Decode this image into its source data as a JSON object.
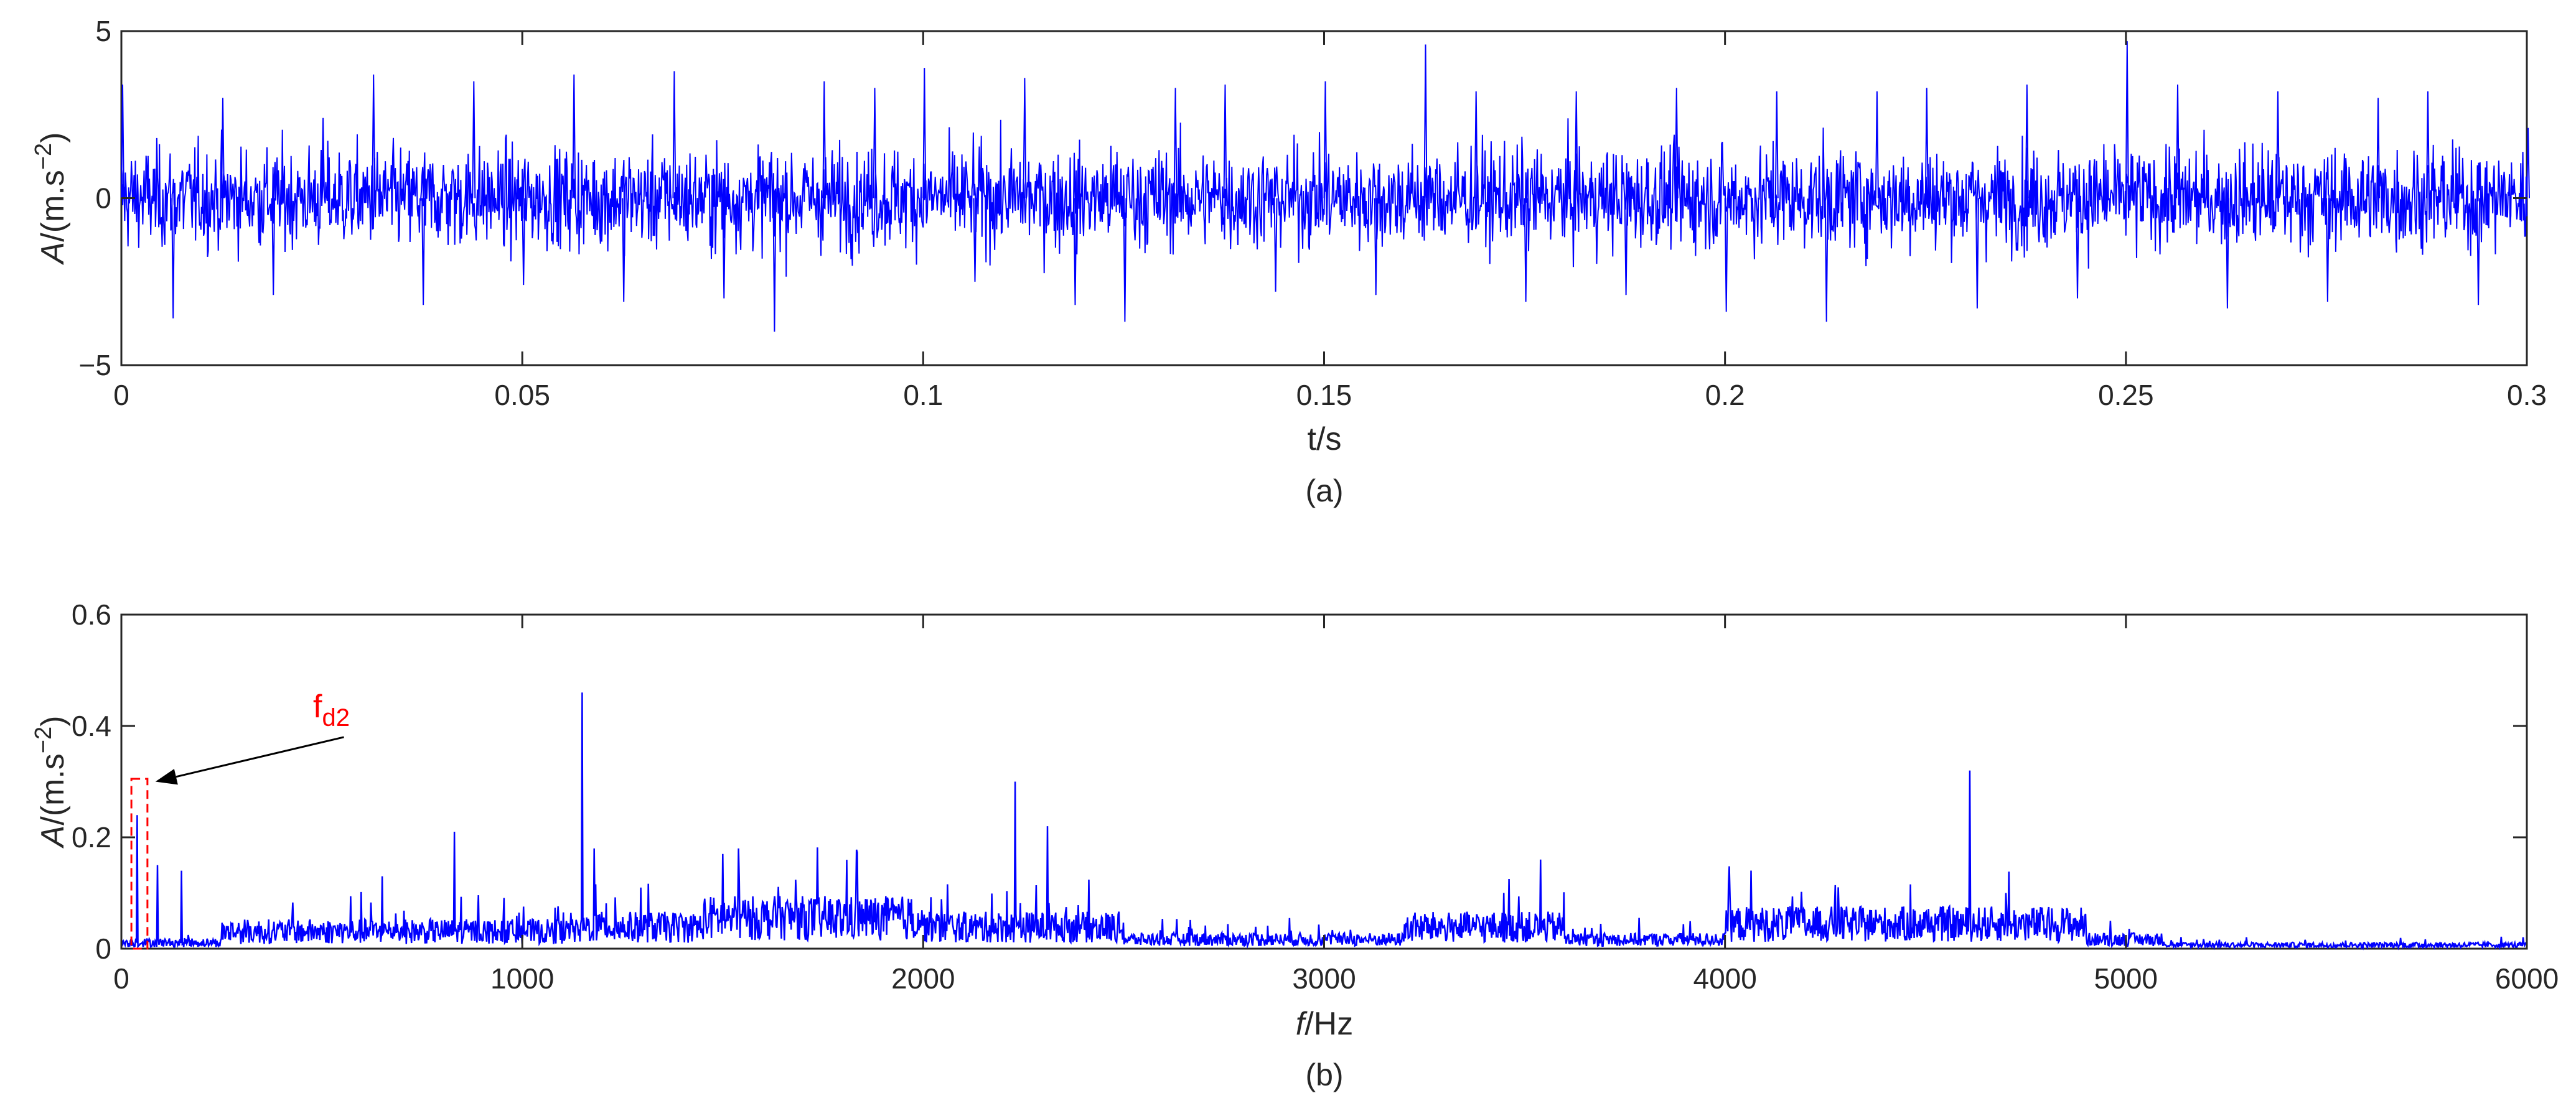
{
  "chart_data": [
    {
      "type": "line",
      "panel": "(a)",
      "caption": "(a)",
      "xlabel": "t/s",
      "ylabel": "A/(m.s",
      "ylabel_exp": "−2",
      "ylabel_close": ")",
      "xlim": [
        0,
        0.3
      ],
      "ylim": [
        -5,
        5
      ],
      "xticks": [
        0,
        0.05,
        0.1,
        0.15,
        0.2,
        0.25,
        0.3
      ],
      "xtick_labels": [
        "0",
        "0.05",
        "0.1",
        "0.15",
        "0.2",
        "0.25",
        "0.3"
      ],
      "yticks": [
        -5,
        0,
        5
      ],
      "ytick_labels": [
        "−5",
        "0",
        "5"
      ],
      "line_color": "#0000ff",
      "grid": false,
      "series": [
        {
          "x": [
            0,
            0.0063,
            0.0125,
            0.0188,
            0.025,
            0.0313,
            0.0375,
            0.0438,
            0.05,
            0.0563,
            0.0625,
            0.0688,
            0.075,
            0.0813,
            0.0875,
            0.0938,
            0.1,
            0.1063,
            0.1125,
            0.1188,
            0.125,
            0.1313,
            0.1375,
            0.1438,
            0.15,
            0.1563,
            0.1625,
            0.1688,
            0.175,
            0.1813,
            0.1875,
            0.1938,
            0.2,
            0.2063,
            0.2125,
            0.2188,
            0.225,
            0.2313,
            0.2375,
            0.2438,
            0.25,
            0.2563,
            0.2625,
            0.2688,
            0.275,
            0.2813,
            0.2875,
            0.2938,
            0.3
          ],
          "y": [
            3.4,
            -3.6,
            3.0,
            -2.9,
            2.4,
            3.7,
            -3.2,
            3.5,
            -2.6,
            3.7,
            -3.1,
            3.8,
            -3.0,
            -4.0,
            3.5,
            3.3,
            3.9,
            -2.5,
            3.6,
            -3.2,
            -3.7,
            3.3,
            3.4,
            -2.8,
            3.5,
            -2.9,
            4.6,
            3.2,
            -3.1,
            3.2,
            -2.9,
            3.3,
            -3.4,
            3.2,
            -3.7,
            3.2,
            3.3,
            -3.3,
            3.4,
            -3.0,
            4.7,
            3.4,
            -3.3,
            3.2,
            -3.1,
            3.0,
            3.2,
            -3.2,
            2.1
          ]
        }
      ]
    },
    {
      "type": "line",
      "panel": "(b)",
      "caption": "(b)",
      "xlabel_italic": "f",
      "xlabel_rest": "/Hz",
      "ylabel": "A/(m.s",
      "ylabel_exp": "−2",
      "ylabel_close": ")",
      "xlim": [
        0,
        6000
      ],
      "ylim": [
        0,
        0.6
      ],
      "xticks": [
        0,
        1000,
        2000,
        3000,
        4000,
        5000,
        6000
      ],
      "xtick_labels": [
        "0",
        "1000",
        "2000",
        "3000",
        "4000",
        "5000",
        "6000"
      ],
      "yticks": [
        0,
        0.2,
        0.4,
        0.6
      ],
      "ytick_labels": [
        "0",
        "0.2",
        "0.4",
        "0.6"
      ],
      "line_color": "#0000ff",
      "grid": false,
      "series": [
        {
          "x": [
            40,
            90,
            150,
            650,
            830,
            1150,
            1180,
            1500,
            1540,
            2230,
            2310,
            3540,
            4610,
            4700
          ],
          "y": [
            0.24,
            0.15,
            0.14,
            0.13,
            0.21,
            0.46,
            0.18,
            0.17,
            0.18,
            0.3,
            0.22,
            0.16,
            0.32,
            0.1
          ]
        }
      ],
      "annotation": {
        "label_main": "f",
        "label_sub": "d2",
        "color": "#ff0000",
        "box_x": [
          25,
          65
        ],
        "box_y": [
          0,
          0.305
        ],
        "arrow_from": [
          555,
          0.38
        ],
        "arrow_to": [
          85,
          0.3
        ]
      }
    }
  ]
}
